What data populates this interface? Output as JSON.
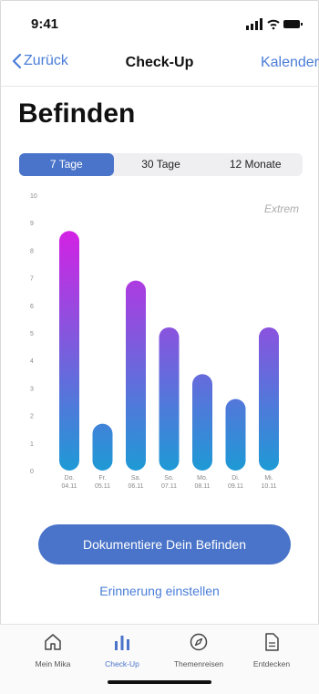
{
  "status_bar": {
    "time": "9:41"
  },
  "nav": {
    "back_label": "Zurück",
    "title": "Check-Up",
    "right_label": "Kalender"
  },
  "page": {
    "heading": "Befinden"
  },
  "segments": {
    "items": [
      "7 Tage",
      "30 Tage",
      "12 Monate"
    ],
    "active_index": 0
  },
  "chart_data": {
    "type": "bar",
    "categories": [
      "Do. 04.11",
      "Fr. 05.11",
      "Sa. 06.11",
      "So. 07.11",
      "Mo. 08.11",
      "Di. 09.11",
      "Mi. 10.11"
    ],
    "day_labels": [
      "Do.",
      "Fr.",
      "Sa.",
      "So.",
      "Mo.",
      "Di.",
      "Mi."
    ],
    "date_labels": [
      "04.11",
      "05.11",
      "06.11",
      "07.11",
      "08.11",
      "09.11",
      "10.11"
    ],
    "values": [
      8.7,
      1.7,
      6.9,
      5.2,
      3.5,
      2.6,
      5.2
    ],
    "ylim": [
      0,
      10
    ],
    "yticks": [
      "0",
      "1",
      "2",
      "3",
      "4",
      "5",
      "6",
      "7",
      "8",
      "9",
      "10"
    ],
    "annotation": "Extrem",
    "colors": {
      "top": "#ee10e6",
      "bottom": "#1e9ad6"
    }
  },
  "actions": {
    "primary_label": "Dokumentiere Dein Befinden",
    "secondary_label": "Erinnerung einstellen"
  },
  "tabbar": {
    "items": [
      {
        "label": "Mein Mika",
        "icon": "home-icon"
      },
      {
        "label": "Check-Up",
        "icon": "bar-chart-icon"
      },
      {
        "label": "Themenreisen",
        "icon": "compass-icon"
      },
      {
        "label": "Entdecken",
        "icon": "document-icon"
      }
    ],
    "active_index": 1
  },
  "colors": {
    "accent": "#4a74c9",
    "link": "#4a7dd8"
  }
}
